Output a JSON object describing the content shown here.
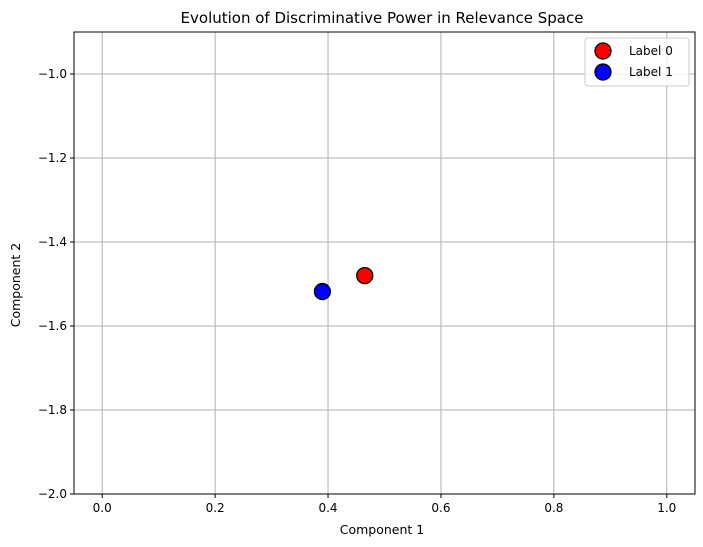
{
  "chart_data": {
    "type": "scatter",
    "title": "Evolution of Discriminative Power in Relevance Space",
    "xlabel": "Component 1",
    "ylabel": "Component 2",
    "xlim": [
      -0.05,
      1.05
    ],
    "ylim": [
      -2.0,
      -0.9
    ],
    "x_ticks": [
      0.0,
      0.2,
      0.4,
      0.6,
      0.8,
      1.0
    ],
    "x_tick_labels": [
      "0.0",
      "0.2",
      "0.4",
      "0.6",
      "0.8",
      "1.0"
    ],
    "y_ticks": [
      -1.0,
      -1.2,
      -1.4,
      -1.6,
      -1.8,
      -2.0
    ],
    "y_tick_labels": [
      "−1.0",
      "−1.2",
      "−1.4",
      "−1.6",
      "−1.8",
      "−2.0"
    ],
    "grid": true,
    "legend_position": "top-right",
    "series": [
      {
        "name": "Label 0",
        "color": "#ff0000",
        "points": [
          {
            "x": 0.465,
            "y": -1.48
          }
        ]
      },
      {
        "name": "Label 1",
        "color": "#0000ff",
        "points": [
          {
            "x": 0.39,
            "y": -1.518
          }
        ]
      }
    ]
  }
}
